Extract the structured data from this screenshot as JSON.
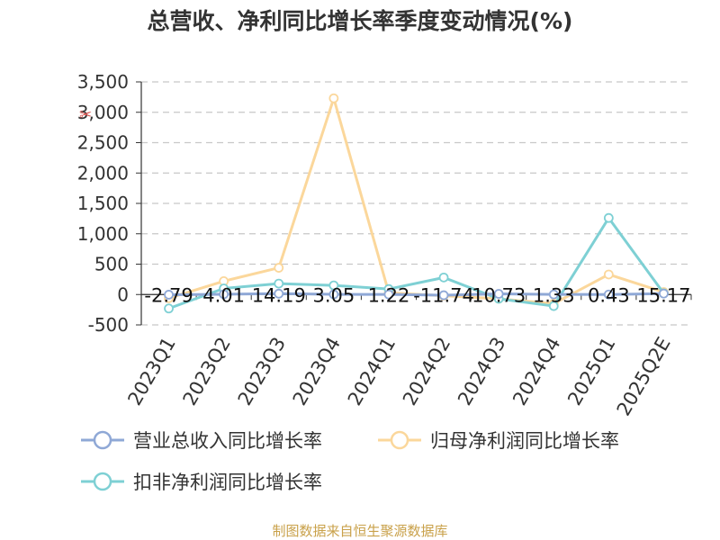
{
  "title": "总营收、净利同比增长率季度变动情况(%)",
  "footer": "制图数据来自恒生聚源数据库",
  "chart_data": {
    "type": "line",
    "categories": [
      "2023Q1",
      "2023Q2",
      "2023Q3",
      "2023Q4",
      "2024Q1",
      "2024Q2",
      "2024Q3",
      "2024Q4",
      "2025Q1",
      "2025Q2E"
    ],
    "ylim": [
      -500,
      3500
    ],
    "yticks": [
      -500,
      0,
      500,
      1000,
      1500,
      2000,
      2500,
      3000,
      3500
    ],
    "ytick_labels": [
      "-500",
      "0",
      "500",
      "1,000",
      "1,500",
      "2,000",
      "2,500",
      "3,000",
      "3,500"
    ],
    "grid": true,
    "legend_position": "bottom",
    "series": [
      {
        "name": "营业总收入同比增长率",
        "color": "#8fa8d6",
        "values": [
          -2.79,
          4.01,
          14.19,
          3.05,
          1.22,
          -11.74,
          10.73,
          1.33,
          0.43,
          15.17
        ],
        "labels": [
          "-2.79",
          "4.01",
          "14.19",
          "3.05",
          "1.22",
          "-11.74",
          "10.73",
          "1.33",
          "0.43",
          "15.17"
        ]
      },
      {
        "name": "归母净利润同比增长率",
        "color": "#fbd79b",
        "values": [
          -60,
          220,
          440,
          3230,
          30,
          -20,
          -70,
          -150,
          330,
          40
        ]
      },
      {
        "name": "扣非净利润同比增长率",
        "color": "#7ed0d4",
        "values": [
          -230,
          100,
          180,
          150,
          90,
          280,
          -70,
          -190,
          1260,
          20
        ]
      }
    ]
  }
}
